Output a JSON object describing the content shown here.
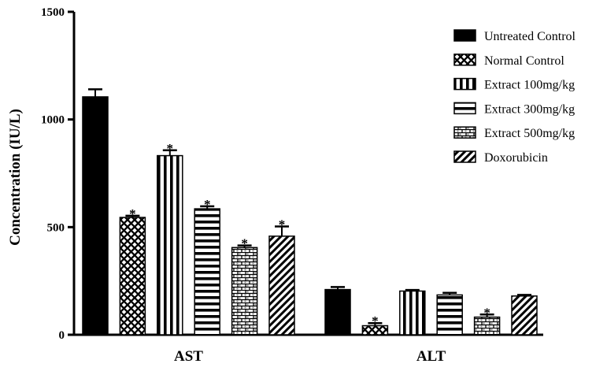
{
  "chart_data": {
    "type": "bar",
    "title": "",
    "xlabel": "",
    "ylabel": "Concentration (IU/L)",
    "ylim": [
      0,
      1500
    ],
    "yticks": [
      0,
      500,
      1000,
      1500
    ],
    "grid": false,
    "legend_position": "top-right",
    "categories": [
      "AST",
      "ALT"
    ],
    "series": [
      {
        "name": "Untreated Control",
        "pattern": "solid",
        "values": [
          1105,
          210
        ],
        "errors": [
          35,
          12
        ],
        "significant": [
          false,
          false
        ]
      },
      {
        "name": "Normal Control",
        "pattern": "cross",
        "values": [
          545,
          42
        ],
        "errors": [
          8,
          12
        ],
        "significant": [
          true,
          true
        ]
      },
      {
        "name": "Extract 100mg/kg",
        "pattern": "vertical",
        "values": [
          832,
          203
        ],
        "errors": [
          25,
          5
        ],
        "significant": [
          true,
          false
        ]
      },
      {
        "name": "Extract 300mg/kg",
        "pattern": "horizontal",
        "values": [
          585,
          185
        ],
        "errors": [
          12,
          10
        ],
        "significant": [
          true,
          false
        ]
      },
      {
        "name": "Extract 500mg/kg",
        "pattern": "brick",
        "values": [
          405,
          82
        ],
        "errors": [
          10,
          12
        ],
        "significant": [
          true,
          true
        ]
      },
      {
        "name": "Doxorubicin",
        "pattern": "diagonal",
        "values": [
          458,
          180
        ],
        "errors": [
          45,
          5
        ],
        "significant": [
          true,
          false
        ]
      }
    ],
    "significance_marker": "*"
  }
}
